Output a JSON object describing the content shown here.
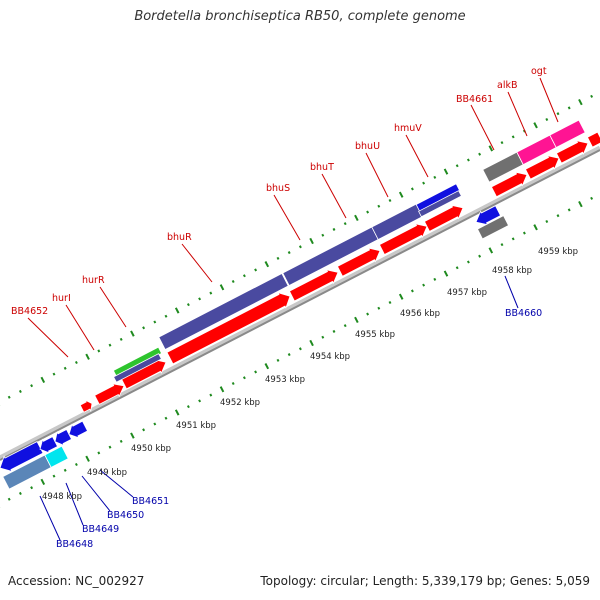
{
  "page": {
    "title": "Bordetella bronchiseptica RB50, complete genome",
    "accession": "Accession: NC_002927",
    "summary": "Topology: circular; Length: 5,339,179 bp; Genes: 5,059"
  },
  "colors": {
    "backbone": "#8a8a8a",
    "tick": "#1f8a1f",
    "forward_label": "#cc0000",
    "reverse_label": "#0000aa",
    "cds": "#ff0000",
    "gene_purple": "#4a4aa0",
    "gene_blue": "#1010e0",
    "gene_green": "#2ec42e",
    "gene_magenta": "#ff1493",
    "gene_gray": "#707070",
    "gene_steel": "#5b86b8",
    "gene_cyan": "#00e5ee"
  },
  "kbp_labels": [
    "4948 kbp",
    "4949 kbp",
    "4950 kbp",
    "4951 kbp",
    "4952 kbp",
    "4953 kbp",
    "4954 kbp",
    "4955 kbp",
    "4956 kbp",
    "4957 kbp",
    "4958 kbp",
    "4959 kbp"
  ],
  "forward_gene_labels": [
    "BB4652",
    "hurI",
    "hurR",
    "bhuR",
    "bhuS",
    "bhuT",
    "bhuU",
    "hmuV",
    "BB4661",
    "alkB",
    "ogt"
  ],
  "reverse_gene_labels": [
    "BB4648",
    "BB4649",
    "BB4650",
    "BB4651",
    "BB4660"
  ]
}
